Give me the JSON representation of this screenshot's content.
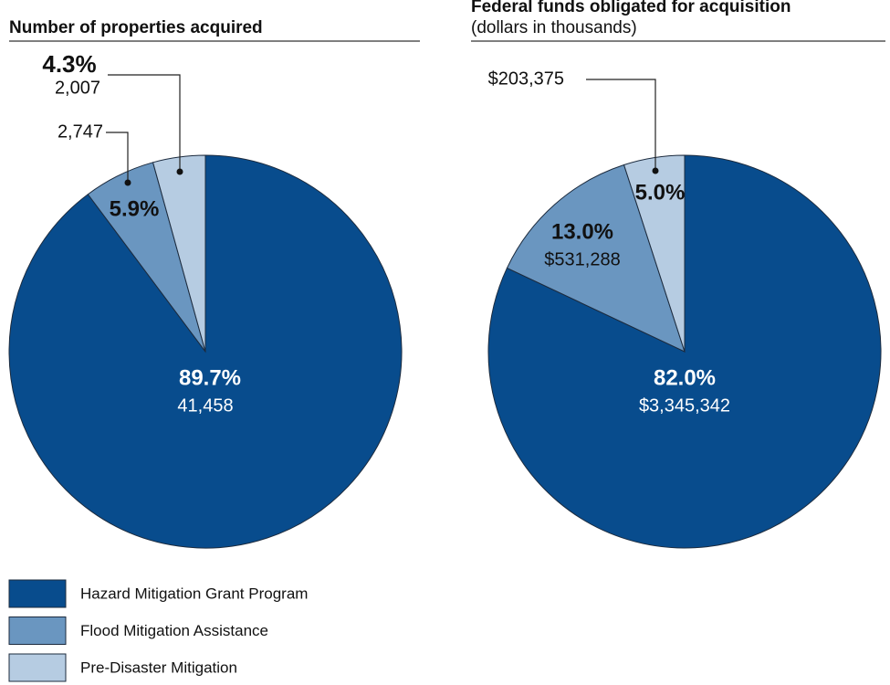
{
  "chart_data": [
    {
      "type": "pie",
      "title": "Number of properties acquired",
      "categories": [
        "Hazard Mitigation Grant Program",
        "Flood Mitigation Assistance",
        "Pre-Disaster Mitigation"
      ],
      "colors": [
        "#084c8d",
        "#6a96c0",
        "#b6cce2"
      ],
      "values": [
        89.7,
        5.9,
        4.3
      ],
      "value_labels": [
        "89.7%",
        "5.9%",
        "4.3%"
      ],
      "amounts": [
        41458,
        2747,
        2007
      ],
      "amount_labels": [
        "41,458",
        "2,747",
        "2,007"
      ]
    },
    {
      "type": "pie",
      "title": "Federal funds obligated for acquisition",
      "subtitle": "(dollars in thousands)",
      "values": [
        82.0,
        13.0,
        5.0
      ],
      "value_labels": [
        "82.0%",
        "13.0%",
        "5.0%"
      ],
      "amounts": [
        3345342,
        531288,
        203375
      ],
      "amount_labels": [
        "$3,345,342",
        "$531,288",
        "$203,375"
      ]
    }
  ]
}
